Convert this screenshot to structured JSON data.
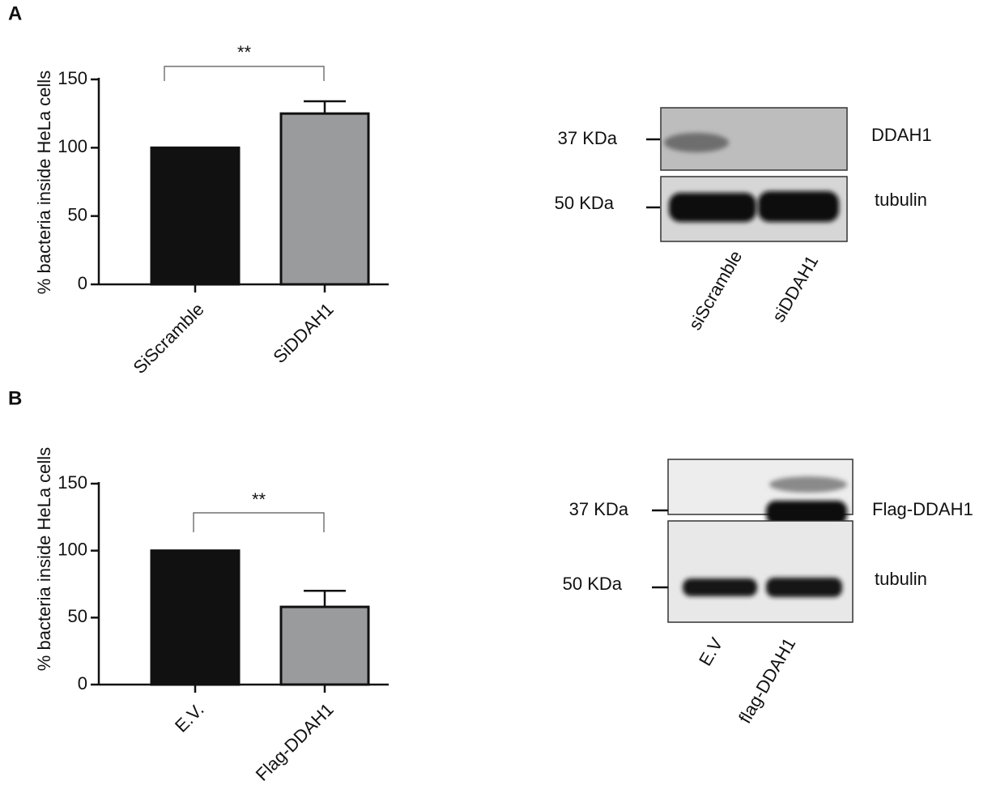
{
  "panels": [
    "A",
    "B"
  ],
  "chart_data": [
    {
      "type": "bar",
      "y_label": "% bacteria inside HeLa cells",
      "categories": [
        "SiScramble",
        "SiDDAH1"
      ],
      "values": [
        100,
        125
      ],
      "errors": [
        null,
        9
      ],
      "colors": [
        "#111111",
        "#9a9b9d"
      ],
      "ylim": [
        0,
        150
      ],
      "yticks": [
        0,
        50,
        100,
        150
      ],
      "significance": "**"
    },
    {
      "type": "bar",
      "y_label": "% bacteria inside HeLa cells",
      "categories": [
        "E.V.",
        "Flag-DDAH1"
      ],
      "values": [
        100,
        58
      ],
      "errors": [
        null,
        12
      ],
      "colors": [
        "#111111",
        "#9a9b9d"
      ],
      "ylim": [
        0,
        150
      ],
      "yticks": [
        0,
        50,
        100,
        150
      ],
      "significance": "**"
    }
  ],
  "blots": [
    {
      "markers": [
        "37 KDa",
        "50 KDa"
      ],
      "bands": [
        "DDAH1",
        "tubulin"
      ],
      "lanes": [
        "siScramble",
        "siDDAH1"
      ]
    },
    {
      "markers": [
        "37 KDa",
        "50 KDa"
      ],
      "bands": [
        "Flag-DDAH1",
        "tubulin"
      ],
      "lanes": [
        "E.V",
        "flag-DDAH1"
      ]
    }
  ]
}
